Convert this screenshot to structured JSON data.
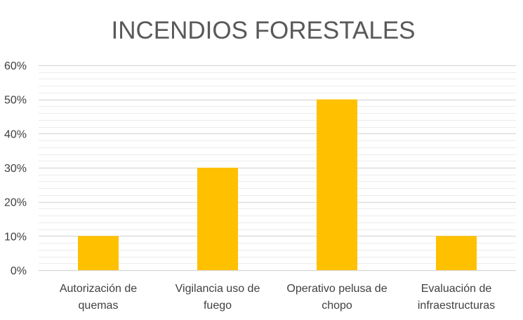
{
  "chart_data": {
    "type": "bar",
    "title": "INCENDIOS FORESTALES",
    "categories": [
      [
        "Autorización de",
        "quemas"
      ],
      [
        "Vigilancia uso de",
        "fuego"
      ],
      [
        "Operativo pelusa de",
        "chopo"
      ],
      [
        "Evaluación de",
        "infraestructuras"
      ]
    ],
    "values": [
      10,
      30,
      50,
      10
    ],
    "value_unit": "%",
    "ylim": [
      0,
      60
    ],
    "yticks": [
      "0%",
      "10%",
      "20%",
      "30%",
      "40%",
      "50%",
      "60%"
    ],
    "xlabel": "",
    "ylabel": "",
    "grid": true,
    "minor_grid": true,
    "legend": "none"
  },
  "colors": {
    "bar": "#FFC000",
    "major_grid": "#d9d9d9",
    "minor_grid": "#ececec",
    "text": "#404040",
    "title": "#595959"
  }
}
